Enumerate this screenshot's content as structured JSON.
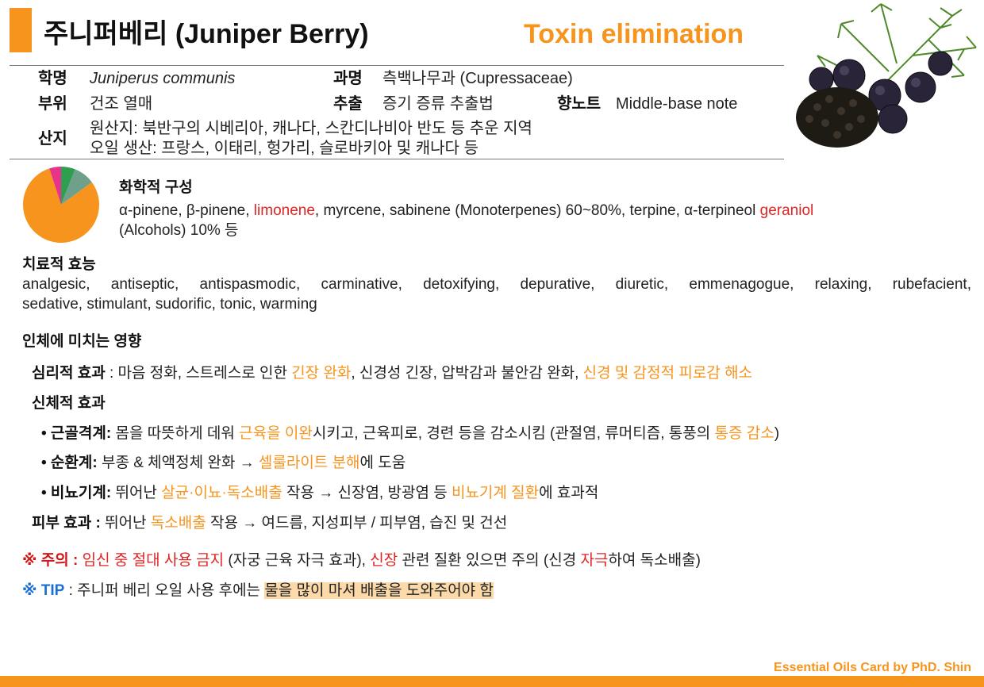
{
  "header": {
    "title": "주니퍼베리 (Juniper Berry)",
    "subtitle": "Toxin elimination"
  },
  "info": {
    "scientific_name": {
      "label": "학명",
      "value": "Juniperus communis"
    },
    "family": {
      "label": "과명",
      "value": "측백나무과 (Cupressaceae)"
    },
    "part": {
      "label": "부위",
      "value": "건조 열매"
    },
    "extraction": {
      "label": "추출",
      "value": "증기 증류 추출법"
    },
    "note": {
      "label": "향노트",
      "value": "Middle-base note"
    },
    "origin": {
      "label": "산지",
      "lines": [
        "원산지: 북반구의 시베리아, 캐나다, 스칸디나비아 반도 등 추운 지역",
        "오일 생산: 프랑스, 이태리, 헝가리, 슬로바키아 및 캐나다 등"
      ]
    }
  },
  "composition": {
    "title": "화학적 구성",
    "pie": {
      "values": [
        6,
        9,
        80,
        5
      ],
      "colors": [
        "#2e9e4f",
        "#6fa08c",
        "#f7941d",
        "#e8338a"
      ]
    },
    "lines": [
      [
        {
          "text": "α-pinene, β-pinene, ",
          "style": "normal"
        },
        {
          "text": "limonene",
          "style": "red"
        },
        {
          "text": ", myrcene, sabinene (Monoterpenes) 60~80%, terpine, α-terpineol ",
          "style": "normal"
        },
        {
          "text": "geraniol",
          "style": "red"
        }
      ],
      [
        {
          "text": "(Alcohols) 10% 등",
          "style": "normal"
        }
      ]
    ]
  },
  "efficacy": {
    "title": "치료적 효능",
    "lines": [
      "analgesic, antiseptic, antispasmodic, carminative, detoxifying, depurative, diuretic, emmenagogue, relaxing, rubefacient,",
      "sedative, stimulant, sudorific, tonic, warming"
    ]
  },
  "effects": {
    "title": "인체에 미치는 영향",
    "lines": [
      {
        "level": 1,
        "segments": [
          {
            "text": "심리적 효과",
            "style": "bold"
          },
          {
            "text": " : 마음 정화, 스트레스로 인한 ",
            "style": "normal"
          },
          {
            "text": "긴장 완화",
            "style": "orange"
          },
          {
            "text": ", 신경성 긴장, 압박감과 불안감 완화, ",
            "style": "normal"
          },
          {
            "text": "신경 및 감정적 피로감 해소",
            "style": "orange"
          }
        ]
      },
      {
        "level": 1,
        "segments": [
          {
            "text": "신체적 효과",
            "style": "bold"
          }
        ]
      },
      {
        "level": 2,
        "segments": [
          {
            "text": "• 근골격계:",
            "style": "bold"
          },
          {
            "text": " 몸을 따뜻하게 데워 ",
            "style": "normal"
          },
          {
            "text": "근육을 이완",
            "style": "orange"
          },
          {
            "text": "시키고, 근육피로, 경련 등을 감소시킴 (관절염, 류머티즘, 통풍의 ",
            "style": "normal"
          },
          {
            "text": "통증 감소",
            "style": "orange"
          },
          {
            "text": ")",
            "style": "normal"
          }
        ]
      },
      {
        "level": 2,
        "segments": [
          {
            "text": "• 순환계:",
            "style": "bold"
          },
          {
            "text": " 부종 & 체액정체 완화 → ",
            "style": "normal"
          },
          {
            "text": "셀룰라이트 분해",
            "style": "orange"
          },
          {
            "text": "에 도움",
            "style": "normal"
          }
        ]
      },
      {
        "level": 2,
        "segments": [
          {
            "text": "• 비뇨기계:",
            "style": "bold"
          },
          {
            "text": " 뛰어난 ",
            "style": "normal"
          },
          {
            "text": "살균·이뇨·독소배출",
            "style": "orange"
          },
          {
            "text": " 작용 → 신장염, 방광염 등 ",
            "style": "normal"
          },
          {
            "text": "비뇨기계 질환",
            "style": "orange"
          },
          {
            "text": "에 효과적",
            "style": "normal"
          }
        ]
      },
      {
        "level": 1,
        "segments": [
          {
            "text": "피부 효과 :",
            "style": "bold"
          },
          {
            "text": " 뛰어난 ",
            "style": "normal"
          },
          {
            "text": "독소배출",
            "style": "orange"
          },
          {
            "text": " 작용 → 여드름, 지성피부 / 피부염, 습진 및 건선",
            "style": "normal"
          }
        ]
      }
    ]
  },
  "notes": [
    [
      {
        "text": "※ 주의 :",
        "style": "red-bold"
      },
      {
        "text": " ",
        "style": "normal"
      },
      {
        "text": "임신 중 절대 사용 금지",
        "style": "red"
      },
      {
        "text": " (자궁 근육 자극 효과), ",
        "style": "normal"
      },
      {
        "text": "신장",
        "style": "red"
      },
      {
        "text": " 관련 질환 있으면 주의 (신경 ",
        "style": "normal"
      },
      {
        "text": "자극",
        "style": "red"
      },
      {
        "text": "하여 독소배출)",
        "style": "normal"
      }
    ],
    [
      {
        "text": "※ TIP",
        "style": "blue-bold"
      },
      {
        "text": " : 주니퍼 베리 오일 사용 후에는 ",
        "style": "normal"
      },
      {
        "text": "물을 많이 마셔 배출을 도와주어야 함",
        "style": "highlight"
      }
    ]
  ],
  "footer": "Essential Oils Card by PhD. Shin"
}
